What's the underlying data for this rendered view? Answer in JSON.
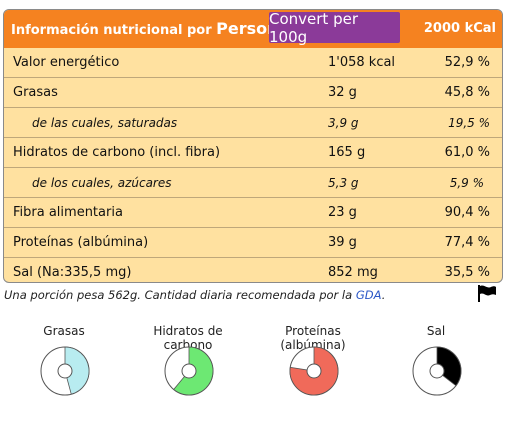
{
  "header": {
    "title_prefix": "Información nutricional por ",
    "title_strong": "Person",
    "convert_label": "Convert per 100g",
    "kcal": "2000 kCal"
  },
  "rows": [
    {
      "name": "Valor energético",
      "amount": "1'058 kcal",
      "pct": "52,9 %"
    },
    {
      "name": "Grasas",
      "amount": "32 g",
      "pct": "45,8 %"
    },
    {
      "name": "de las cuales, saturadas",
      "amount": "3,9 g",
      "pct": "19,5 %"
    },
    {
      "name": "Hidratos de carbono (incl. fibra)",
      "amount": "165 g",
      "pct": "61,0 %"
    },
    {
      "name": "de los cuales, azúcares",
      "amount": "5,3 g",
      "pct": "5,9 %"
    },
    {
      "name": "Fibra alimentaria",
      "amount": "23 g",
      "pct": "90,4 %"
    },
    {
      "name": "Proteínas (albúmina)",
      "amount": "39 g",
      "pct": "77,4 %"
    },
    {
      "name": "Sal (Na:335,5 mg)",
      "amount": "852 mg",
      "pct": "35,5 %"
    }
  ],
  "footnote": {
    "text": "Una porción pesa 562g.   Cantidad diaria recomendada por la ",
    "link": "GDA",
    "end": "."
  },
  "charts": [
    {
      "label": "Grasas",
      "fraction": 0.458,
      "color": "#b8ecf0"
    },
    {
      "label": "Hidratos de carbono",
      "fraction": 0.61,
      "color": "#6de873"
    },
    {
      "label": "Proteínas (albúmina)",
      "fraction": 0.774,
      "color": "#f06a5a"
    },
    {
      "label": "Sal",
      "fraction": 0.355,
      "color": "#000000"
    }
  ],
  "icons": {
    "flag": "flag-icon"
  }
}
